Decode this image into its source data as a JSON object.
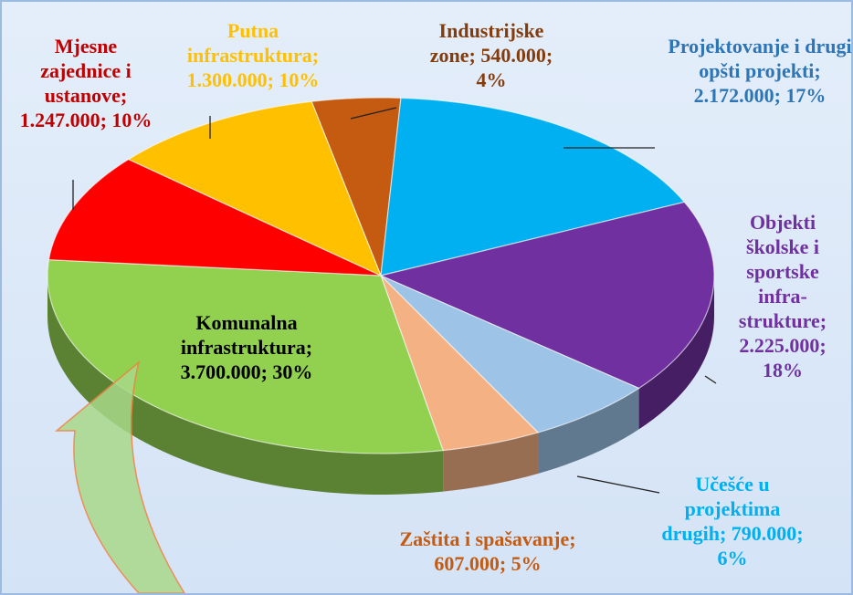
{
  "chart_data": {
    "type": "pie",
    "categories": [
      "Industrijske zone;",
      "Projektovanje i drugi opšti projekti;",
      "Objekti školske i sportske infra-strukture;",
      "Učešće u projektima drugih;",
      "Zaštita i spašavanje;",
      "Komunalna infrastruktura;",
      "Mjesne zajednice i ustanove;",
      "Putna infrastruktura;"
    ],
    "values": [
      540000,
      2172000,
      2225000,
      790000,
      607000,
      3700000,
      1247000,
      1300000
    ],
    "value_labels": [
      "540.000; 4%",
      "2.172.000; 17%",
      "2.225.000; 18%",
      "790.000; 6%",
      "607.000; 5%",
      "3.700.000; 30%",
      "1.247.000; 10%",
      "1.300.000; 10%"
    ],
    "colors": [
      "#c55a11",
      "#00b0f0",
      "#7030a0",
      "#9dc3e6",
      "#f4b183",
      "#92d050",
      "#ff0000",
      "#ffc000"
    ],
    "label_colors": [
      "#843c0c",
      "#2e75b6",
      "#7030a0",
      "#00b0f0",
      "#c55a11",
      "#000000",
      "#c00000",
      "#ffc000"
    ]
  }
}
